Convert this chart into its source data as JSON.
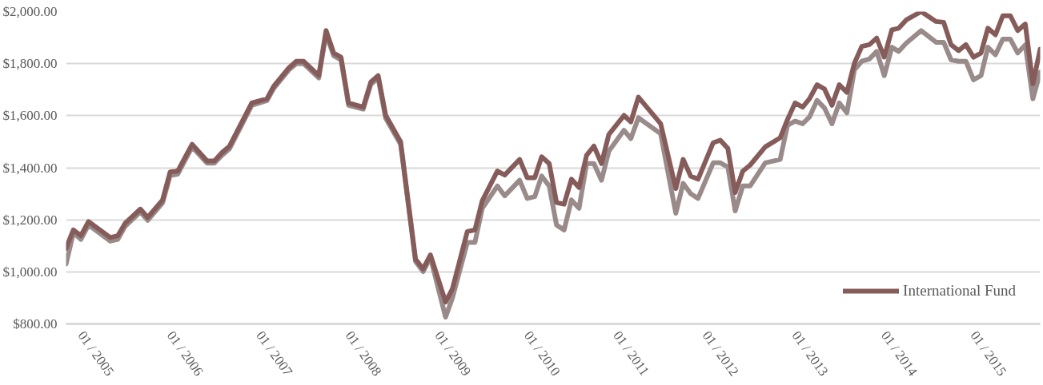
{
  "chart_data": {
    "type": "line",
    "x": [
      "2004-11",
      "2004-12",
      "2005-01",
      "2005-02",
      "2005-05",
      "2005-06",
      "2005-07",
      "2005-09",
      "2005-10",
      "2005-12",
      "2006-01",
      "2006-02",
      "2006-04",
      "2006-06",
      "2006-07",
      "2006-08",
      "2006-09",
      "2006-12",
      "2007-02",
      "2007-03",
      "2007-05",
      "2007-06",
      "2007-07",
      "2007-09",
      "2007-10",
      "2007-11",
      "2007-12",
      "2008-01",
      "2008-03",
      "2008-04",
      "2008-05",
      "2008-06",
      "2008-08",
      "2008-10",
      "2008-11",
      "2008-12",
      "2009-02",
      "2009-03",
      "2009-05",
      "2009-06",
      "2009-07",
      "2009-09",
      "2009-10",
      "2009-12",
      "2010-01",
      "2010-02",
      "2010-03",
      "2010-04",
      "2010-05",
      "2010-06",
      "2010-07",
      "2010-08",
      "2010-09",
      "2010-10",
      "2010-11",
      "2010-12",
      "2011-02",
      "2011-03",
      "2011-04",
      "2011-07",
      "2011-09",
      "2011-10",
      "2011-11",
      "2011-12",
      "2012-02",
      "2012-03",
      "2012-04",
      "2012-05",
      "2012-06",
      "2012-07",
      "2012-09",
      "2012-11",
      "2012-12",
      "2013-01",
      "2013-02",
      "2013-03",
      "2013-04",
      "2013-05",
      "2013-06",
      "2013-07",
      "2013-08",
      "2013-09",
      "2013-10",
      "2013-11",
      "2013-12",
      "2014-01",
      "2014-02",
      "2014-03",
      "2014-04",
      "2014-06",
      "2014-08",
      "2014-09",
      "2014-10",
      "2014-11",
      "2014-12",
      "2015-01",
      "2015-02",
      "2015-03",
      "2015-04",
      "2015-05",
      "2015-06",
      "2015-07",
      "2015-08",
      "2015-09",
      "2015-10"
    ],
    "series": [
      {
        "color": "#9a8b8b",
        "values": [
          1030,
          1150,
          1125,
          1180,
          1118,
          1125,
          1175,
          1230,
          1198,
          1265,
          1370,
          1375,
          1480,
          1418,
          1418,
          1448,
          1473,
          1640,
          1658,
          1705,
          1775,
          1800,
          1800,
          1745,
          1915,
          1830,
          1815,
          1640,
          1625,
          1720,
          1745,
          1590,
          1490,
          1040,
          1001,
          1055,
          826,
          900,
          1113,
          1113,
          1244,
          1330,
          1292,
          1352,
          1282,
          1289,
          1368,
          1330,
          1180,
          1161,
          1276,
          1244,
          1416,
          1416,
          1352,
          1464,
          1544,
          1512,
          1592,
          1531,
          1225,
          1340,
          1300,
          1282,
          1419,
          1419,
          1403,
          1234,
          1330,
          1330,
          1419,
          1432,
          1563,
          1579,
          1569,
          1595,
          1659,
          1630,
          1569,
          1649,
          1611,
          1777,
          1809,
          1818,
          1847,
          1754,
          1863,
          1847,
          1879,
          1927,
          1882,
          1882,
          1815,
          1809,
          1809,
          1738,
          1754,
          1863,
          1834,
          1894,
          1894,
          1841,
          1872,
          1665,
          1767
        ]
      },
      {
        "name": "International Fund",
        "color": "#865c5b",
        "values": [
          1090,
          1161,
          1139,
          1193,
          1132,
          1139,
          1187,
          1241,
          1209,
          1276,
          1384,
          1387,
          1490,
          1426,
          1426,
          1458,
          1483,
          1649,
          1665,
          1713,
          1783,
          1809,
          1809,
          1754,
          1927,
          1841,
          1825,
          1649,
          1633,
          1729,
          1754,
          1601,
          1500,
          1049,
          1011,
          1065,
          884,
          935,
          1155,
          1161,
          1273,
          1387,
          1372,
          1432,
          1362,
          1362,
          1442,
          1416,
          1266,
          1260,
          1356,
          1324,
          1448,
          1483,
          1416,
          1528,
          1601,
          1576,
          1671,
          1569,
          1320,
          1432,
          1368,
          1356,
          1496,
          1506,
          1474,
          1305,
          1387,
          1410,
          1480,
          1515,
          1585,
          1649,
          1633,
          1665,
          1719,
          1703,
          1640,
          1719,
          1690,
          1802,
          1866,
          1873,
          1898,
          1825,
          1930,
          1936,
          1968,
          2000,
          1962,
          1959,
          1873,
          1850,
          1873,
          1825,
          1841,
          1936,
          1911,
          1984,
          1984,
          1927,
          1952,
          1722,
          1856
        ]
      }
    ],
    "xlim": [
      "2004-11",
      "2015-10"
    ],
    "xticks": [
      {
        "value": "2005-01",
        "label": "01 / 2005"
      },
      {
        "value": "2006-01",
        "label": "01 / 2006"
      },
      {
        "value": "2007-01",
        "label": "01 / 2007"
      },
      {
        "value": "2008-01",
        "label": "01 / 2008"
      },
      {
        "value": "2009-01",
        "label": "01 / 2009"
      },
      {
        "value": "2010-01",
        "label": "01 / 2010"
      },
      {
        "value": "2011-01",
        "label": "01 / 2011"
      },
      {
        "value": "2012-01",
        "label": "01 / 2012"
      },
      {
        "value": "2013-01",
        "label": "01 / 2013"
      },
      {
        "value": "2014-01",
        "label": "01 / 2014"
      },
      {
        "value": "2015-01",
        "label": "01 / 2015"
      }
    ],
    "ylim": [
      800,
      2000
    ],
    "yticks": [
      {
        "value": 800,
        "label": "$800.00"
      },
      {
        "value": 1000,
        "label": "$1,000.00"
      },
      {
        "value": 1200,
        "label": "$1,200.00"
      },
      {
        "value": 1400,
        "label": "$1,400.00"
      },
      {
        "value": 1600,
        "label": "$1,600.00"
      },
      {
        "value": 1800,
        "label": "$1,800.00"
      },
      {
        "value": 2000,
        "label": "$2,000.00"
      }
    ],
    "grid": "y",
    "legend": "bottom right",
    "line_style": "solid"
  }
}
